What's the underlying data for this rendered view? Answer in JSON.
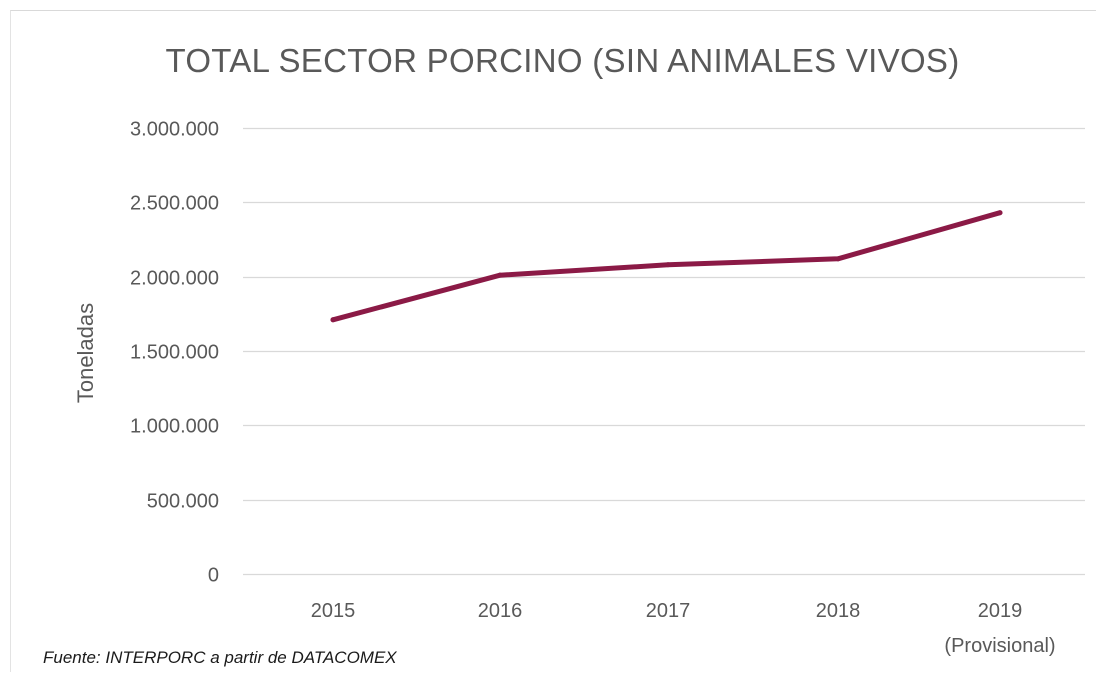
{
  "chart_data": {
    "type": "line",
    "title": "TOTAL SECTOR PORCINO (SIN ANIMALES VIVOS)",
    "xlabel": "",
    "ylabel": "Toneladas",
    "categories": [
      "2015",
      "2016",
      "2017",
      "2018",
      "2019"
    ],
    "category_sublabels": [
      "",
      "",
      "",
      "",
      "(Provisional)"
    ],
    "series": [
      {
        "color": "#8B1A46",
        "values": [
          1710000,
          2010000,
          2080000,
          2120000,
          2430000
        ]
      }
    ],
    "ylim": [
      0,
      3000000
    ],
    "y_ticks": [
      0,
      500000,
      1000000,
      1500000,
      2000000,
      2500000,
      3000000
    ],
    "y_tick_labels": [
      "0",
      "500.000",
      "1.000.000",
      "1.500.000",
      "2.000.000",
      "2.500.000",
      "3.000.000"
    ],
    "grid": true,
    "legend": "none",
    "line_color": "#8B1A46",
    "grid_color": "#d9d9d9",
    "text_color": "#595959"
  },
  "source": "Fuente: INTERPORC  a partir de DATACOMEX"
}
